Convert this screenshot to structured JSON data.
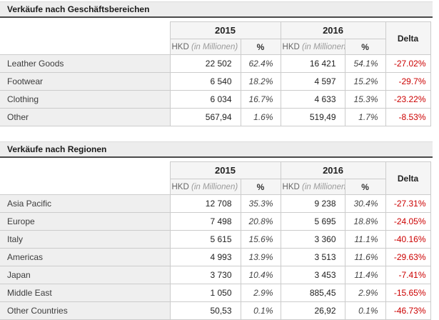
{
  "colors": {
    "title_bg": "#ededed",
    "title_border": "#4a4a4a",
    "table_border": "#cccccc",
    "header_bg": "#f5f5f5",
    "label_bg": "#efefef",
    "delta_red": "#cc0000"
  },
  "tables": [
    {
      "title": "Verkäufe nach Geschäftsbereichen",
      "header": {
        "year_2015": "2015",
        "year_2016": "2016",
        "currency": "HKD",
        "unit": "(in Millionen)",
        "percent": "%",
        "delta": "Delta"
      },
      "rows": [
        {
          "label": "Leather Goods",
          "hkd_2015": "22 502",
          "pct_2015": "62.4%",
          "hkd_2016": "16 421",
          "pct_2016": "54.1%",
          "delta": "-27.02%"
        },
        {
          "label": "Footwear",
          "hkd_2015": "6 540",
          "pct_2015": "18.2%",
          "hkd_2016": "4 597",
          "pct_2016": "15.2%",
          "delta": "-29.7%"
        },
        {
          "label": "Clothing",
          "hkd_2015": "6 034",
          "pct_2015": "16.7%",
          "hkd_2016": "4 633",
          "pct_2016": "15.3%",
          "delta": "-23.22%"
        },
        {
          "label": "Other",
          "hkd_2015": "567,94",
          "pct_2015": "1.6%",
          "hkd_2016": "519,49",
          "pct_2016": "1.7%",
          "delta": "-8.53%"
        }
      ]
    },
    {
      "title": "Verkäufe nach Regionen",
      "header": {
        "year_2015": "2015",
        "year_2016": "2016",
        "currency": "HKD",
        "unit": "(in Millionen)",
        "percent": "%",
        "delta": "Delta"
      },
      "rows": [
        {
          "label": "Asia Pacific",
          "hkd_2015": "12 708",
          "pct_2015": "35.3%",
          "hkd_2016": "9 238",
          "pct_2016": "30.4%",
          "delta": "-27.31%"
        },
        {
          "label": "Europe",
          "hkd_2015": "7 498",
          "pct_2015": "20.8%",
          "hkd_2016": "5 695",
          "pct_2016": "18.8%",
          "delta": "-24.05%"
        },
        {
          "label": "Italy",
          "hkd_2015": "5 615",
          "pct_2015": "15.6%",
          "hkd_2016": "3 360",
          "pct_2016": "11.1%",
          "delta": "-40.16%"
        },
        {
          "label": "Americas",
          "hkd_2015": "4 993",
          "pct_2015": "13.9%",
          "hkd_2016": "3 513",
          "pct_2016": "11.6%",
          "delta": "-29.63%"
        },
        {
          "label": "Japan",
          "hkd_2015": "3 730",
          "pct_2015": "10.4%",
          "hkd_2016": "3 453",
          "pct_2016": "11.4%",
          "delta": "-7.41%"
        },
        {
          "label": "Middle East",
          "hkd_2015": "1 050",
          "pct_2015": "2.9%",
          "hkd_2016": "885,45",
          "pct_2016": "2.9%",
          "delta": "-15.65%"
        },
        {
          "label": "Other Countries",
          "hkd_2015": "50,53",
          "pct_2015": "0.1%",
          "hkd_2016": "26,92",
          "pct_2016": "0.1%",
          "delta": "-46.73%"
        }
      ]
    }
  ]
}
